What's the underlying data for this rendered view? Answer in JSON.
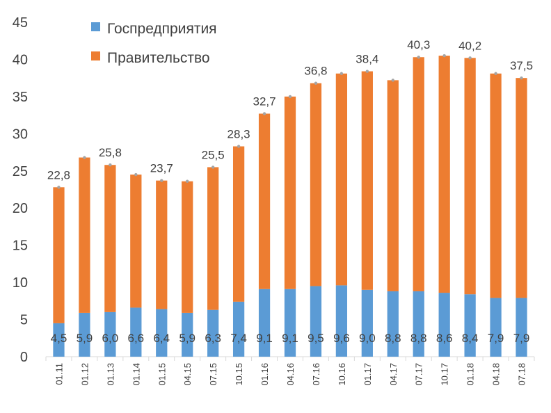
{
  "chart_data": {
    "type": "bar",
    "stacked": true,
    "categories": [
      "01.11",
      "01.12",
      "01.13",
      "01.14",
      "01.15",
      "04.15",
      "07.15",
      "10.15",
      "01.16",
      "04.16",
      "07.16",
      "10.16",
      "01.17",
      "04.17",
      "07.17",
      "10.17",
      "01.18",
      "04.18",
      "07.18"
    ],
    "series": [
      {
        "name": "Госпредприятия",
        "color": "#5B9BD5",
        "values": [
          4.5,
          5.9,
          6.0,
          6.6,
          6.4,
          5.9,
          6.3,
          7.4,
          9.1,
          9.1,
          9.5,
          9.6,
          9.0,
          8.8,
          8.8,
          8.6,
          8.4,
          7.9,
          7.9
        ]
      },
      {
        "name": "Правительство",
        "color": "#ED7D31",
        "values": [
          18.3,
          20.9,
          19.8,
          17.9,
          17.3,
          17.7,
          19.2,
          20.9,
          23.6,
          25.9,
          27.3,
          28.5,
          29.4,
          28.4,
          31.5,
          31.9,
          31.8,
          30.2,
          29.6
        ]
      }
    ],
    "totals": [
      22.8,
      26.8,
      25.8,
      24.5,
      23.7,
      23.6,
      25.5,
      28.3,
      32.7,
      35.0,
      36.8,
      38.1,
      38.4,
      37.2,
      40.3,
      40.5,
      40.2,
      38.1,
      37.5
    ],
    "total_labels": {
      "0": "22,8",
      "2": "25,8",
      "4": "23,7",
      "6": "25,5",
      "7": "28,3",
      "8": "32,7",
      "10": "36,8",
      "12": "38,4",
      "14": "40,3",
      "16": "40,2",
      "18": "37,5"
    },
    "bottom_labels": [
      "4,5",
      "5,9",
      "6,0",
      "6,6",
      "6,4",
      "5,9",
      "6,3",
      "7,4",
      "9,1",
      "9,1",
      "9,5",
      "9,6",
      "9,0",
      "8,8",
      "8,8",
      "8,6",
      "8,4",
      "7,9",
      "7,9"
    ],
    "y_ticks": [
      0,
      5,
      10,
      15,
      20,
      25,
      30,
      35,
      40,
      45
    ],
    "ylim": [
      0,
      45
    ],
    "legend_position": "top-left",
    "grid": false,
    "title": "",
    "xlabel": "",
    "ylabel": ""
  }
}
